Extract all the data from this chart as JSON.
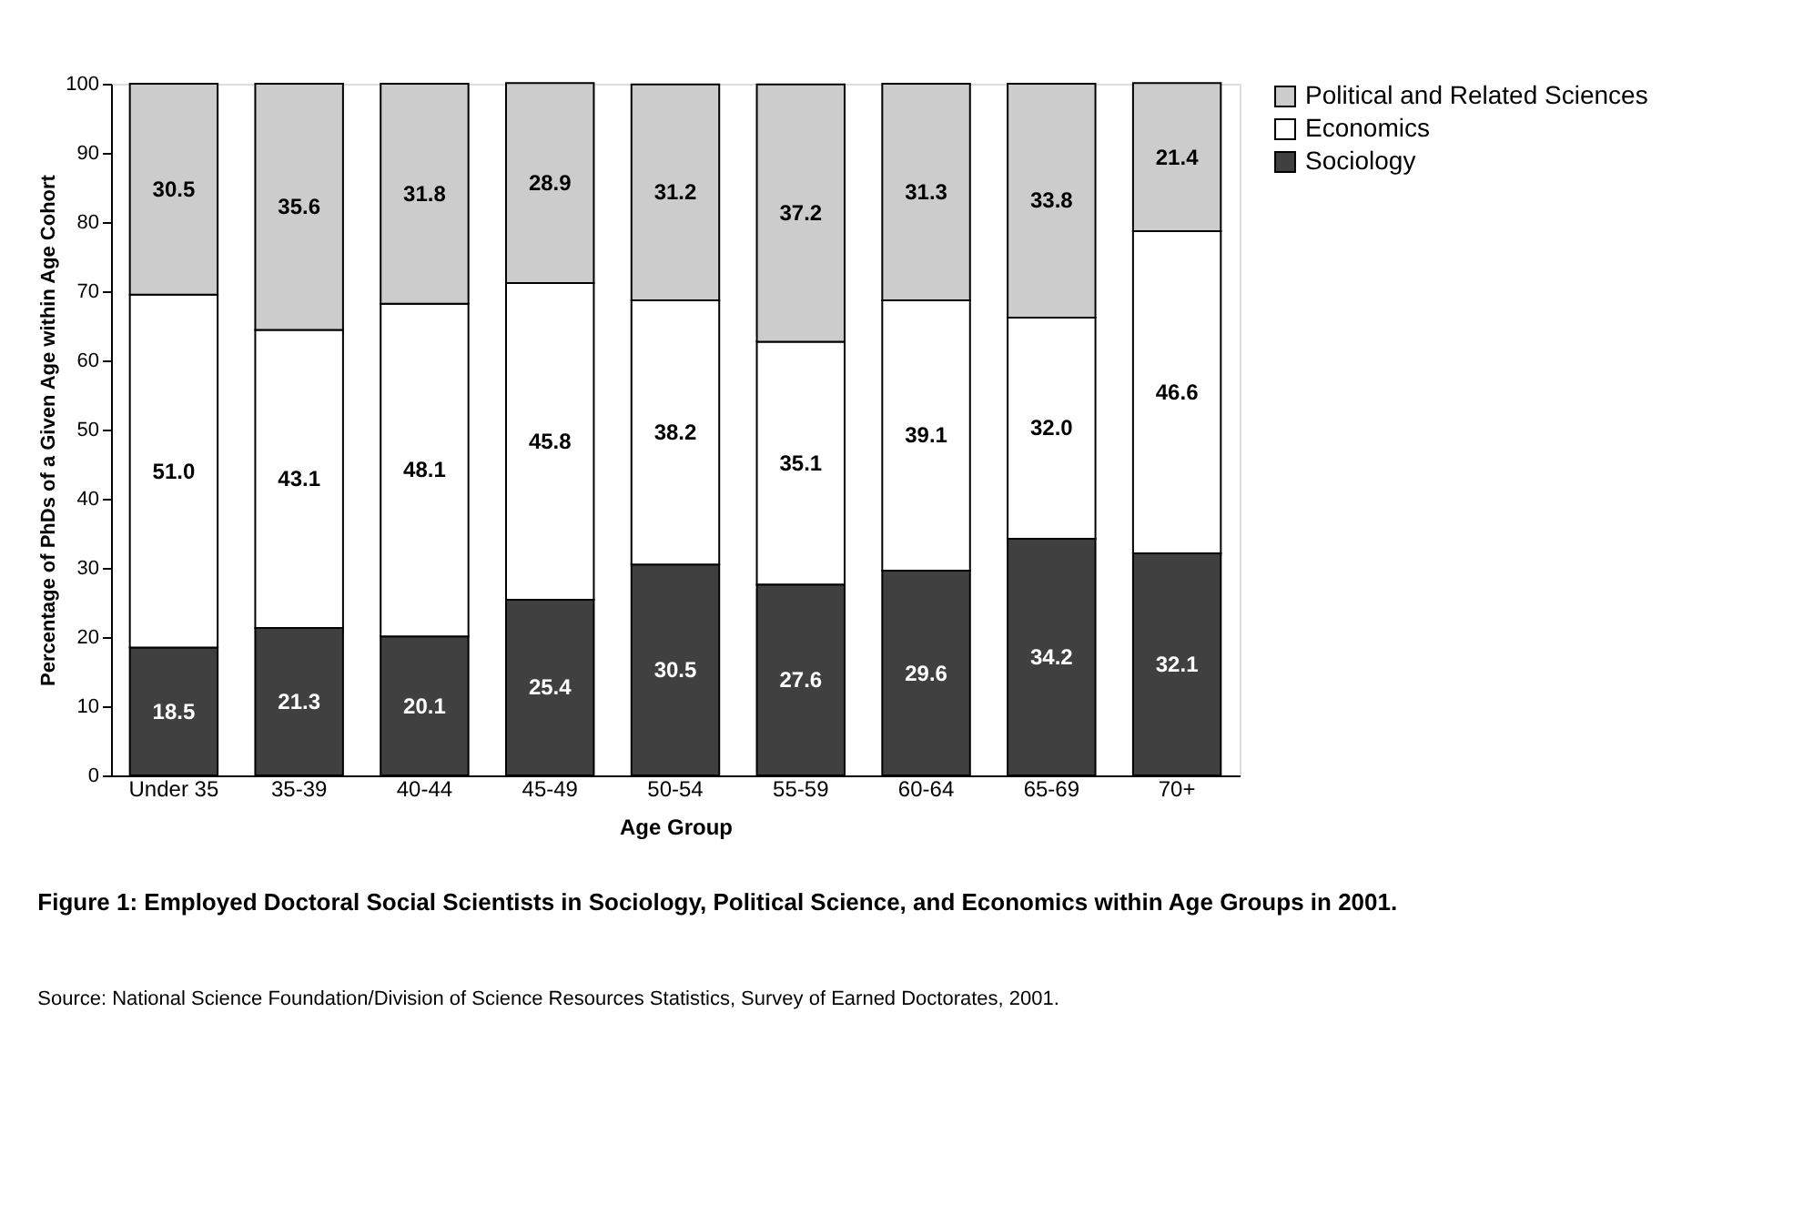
{
  "chart_data": {
    "type": "bar",
    "stacked": true,
    "title": "Figure 1: Employed Doctoral Social Scientists in Sociology, Political Science, and Economics within Age Groups in 2001.",
    "xlabel": "Age Group",
    "ylabel": "Percentage of PhDs of a Given Age within Age Cohort",
    "annotations": [
      "Source: National Science Foundation/Division of Science Resources Statistics, Survey of Earned Doctorates, 2001."
    ],
    "categories": [
      "Under 35",
      "35-39",
      "40-44",
      "45-49",
      "50-54",
      "55-59",
      "60-64",
      "65-69",
      "70+"
    ],
    "series": [
      {
        "name": "Sociology",
        "color": "#404040",
        "values": [
          18.5,
          21.3,
          20.1,
          25.4,
          30.5,
          27.6,
          29.6,
          34.2,
          32.1
        ],
        "value_labels": [
          "18.5",
          "21.3",
          "20.1",
          "25.4",
          "30.5",
          "27.6",
          "29.6",
          "34.2",
          "32.1"
        ]
      },
      {
        "name": "Economics",
        "color": "#ffffff",
        "values": [
          51.0,
          43.1,
          48.1,
          45.8,
          38.2,
          35.1,
          39.1,
          32.0,
          46.6
        ],
        "value_labels": [
          "51.0",
          "43.1",
          "48.1",
          "45.8",
          "38.2",
          "35.1",
          "39.1",
          "32.0",
          "46.6"
        ]
      },
      {
        "name": "Political and Related Sciences",
        "color": "#cccccc",
        "values": [
          30.5,
          35.6,
          31.8,
          28.9,
          31.2,
          37.2,
          31.3,
          33.8,
          21.4
        ],
        "value_labels": [
          "30.5",
          "35.6",
          "31.8",
          "28.9",
          "31.2",
          "37.2",
          "31.3",
          "33.8",
          "21.4"
        ]
      }
    ],
    "ylim": [
      0,
      100
    ],
    "yticks": [
      0,
      10,
      20,
      30,
      40,
      50,
      60,
      70,
      80,
      90,
      100
    ],
    "legend": "right",
    "grid": false
  }
}
